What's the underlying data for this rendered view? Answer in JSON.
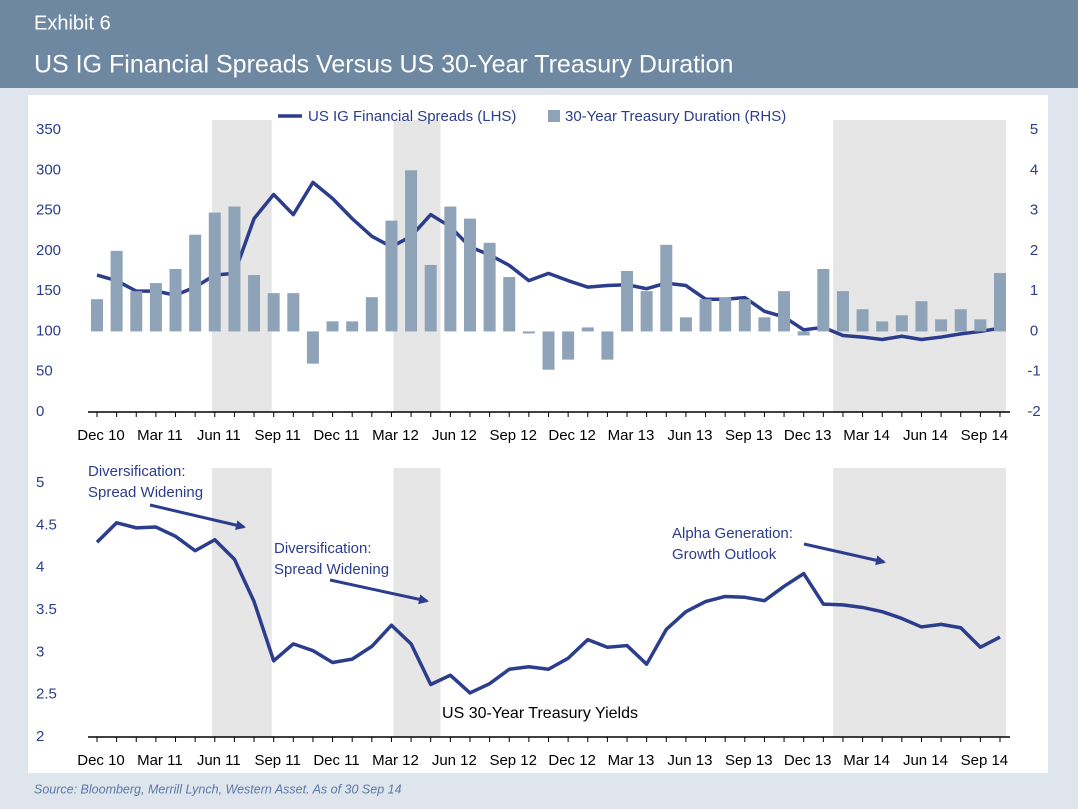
{
  "header": {
    "exhibit": "Exhibit 6",
    "title": "US  IG Financial Spreads Versus US 30-Year Treasury Duration"
  },
  "source": "Source: Bloomberg, Merrill Lynch, Western Asset. As of 30 Sep 14",
  "chart_data": [
    {
      "type": "combo",
      "categories": [
        "Dec 10",
        null,
        null,
        "Mar 11",
        null,
        null,
        "Jun 11",
        null,
        null,
        "Sep 11",
        null,
        null,
        "Dec 11",
        null,
        null,
        "Mar 12",
        null,
        null,
        "Jun 12",
        null,
        null,
        "Sep 12",
        null,
        null,
        "Dec 12",
        null,
        null,
        "Mar 13",
        null,
        null,
        "Jun 13",
        null,
        null,
        "Sep 13",
        null,
        null,
        "Dec 13",
        null,
        null,
        "Mar 14",
        null,
        null,
        "Jun 14",
        null,
        null,
        "Sep 14",
        null
      ],
      "series": [
        {
          "name": "US IG Financial Spreads (LHS)",
          "type": "line",
          "color": "#2b3d8c",
          "values": [
            170,
            163,
            150,
            150,
            145,
            155,
            170,
            172,
            240,
            270,
            245,
            285,
            265,
            240,
            218,
            205,
            218,
            245,
            230,
            205,
            195,
            182,
            163,
            172,
            163,
            155,
            157,
            158,
            153,
            160,
            157,
            140,
            140,
            142,
            125,
            118,
            102,
            105,
            95,
            93,
            90,
            94,
            90,
            93,
            97,
            100,
            104
          ]
        },
        {
          "name": "30-Year Treasury Duration (RHS)",
          "type": "bar",
          "axis": "y2",
          "color": "#8fa3b8",
          "values": [
            0.8,
            2.0,
            1.0,
            1.2,
            1.55,
            2.4,
            2.95,
            3.1,
            1.4,
            0.95,
            0.95,
            -0.8,
            0.25,
            0.25,
            0.85,
            2.75,
            4.0,
            1.65,
            3.1,
            2.8,
            2.2,
            1.35,
            -0.05,
            -0.95,
            -0.7,
            0.1,
            -0.7,
            1.5,
            1.0,
            2.15,
            0.35,
            0.8,
            0.85,
            0.8,
            0.35,
            1.0,
            -0.1,
            1.55,
            1.0,
            0.55,
            0.25,
            0.4,
            0.75,
            0.3,
            0.55,
            0.3,
            1.45
          ]
        }
      ],
      "ylim": [
        0,
        350
      ],
      "yticks": [
        0,
        50,
        100,
        150,
        200,
        250,
        300,
        350
      ],
      "y2lim": [
        -2,
        5
      ],
      "y2ticks": [
        -2,
        -1,
        0,
        1,
        2,
        3,
        4,
        5
      ],
      "legend": "top"
    },
    {
      "type": "line",
      "categories": [
        "Dec 10",
        null,
        null,
        "Mar 11",
        null,
        null,
        "Jun 11",
        null,
        null,
        "Sep 11",
        null,
        null,
        "Dec 11",
        null,
        null,
        "Mar 12",
        null,
        null,
        "Jun 12",
        null,
        null,
        "Sep 12",
        null,
        null,
        "Dec 12",
        null,
        null,
        "Mar 13",
        null,
        null,
        "Jun 13",
        null,
        null,
        "Sep 13",
        null,
        null,
        "Dec 13",
        null,
        null,
        "Mar 14",
        null,
        null,
        "Jun 14",
        null,
        null,
        "Sep 14",
        null
      ],
      "series": [
        {
          "name": "US 30-Year Treasury Yields",
          "color": "#2b3d8c",
          "values": [
            4.3,
            4.53,
            4.47,
            4.48,
            4.37,
            4.2,
            4.33,
            4.1,
            3.6,
            2.9,
            3.1,
            3.02,
            2.88,
            2.92,
            3.07,
            3.32,
            3.1,
            2.62,
            2.73,
            2.52,
            2.63,
            2.8,
            2.83,
            2.8,
            2.93,
            3.15,
            3.06,
            3.08,
            2.86,
            3.27,
            3.48,
            3.6,
            3.66,
            3.65,
            3.61,
            3.78,
            3.93,
            3.57,
            3.56,
            3.53,
            3.48,
            3.4,
            3.3,
            3.33,
            3.29,
            3.06,
            3.18
          ]
        }
      ],
      "ylim": [
        2,
        5
      ],
      "yticks": [
        2,
        2.5,
        3,
        3.5,
        4,
        4.5,
        5
      ],
      "annotations": [
        [
          "Diversification:",
          "Spread Widening"
        ],
        [
          "Diversification:",
          "Spread Widening"
        ],
        [
          "Alpha Generation:",
          "Growth Outlook"
        ]
      ]
    }
  ]
}
